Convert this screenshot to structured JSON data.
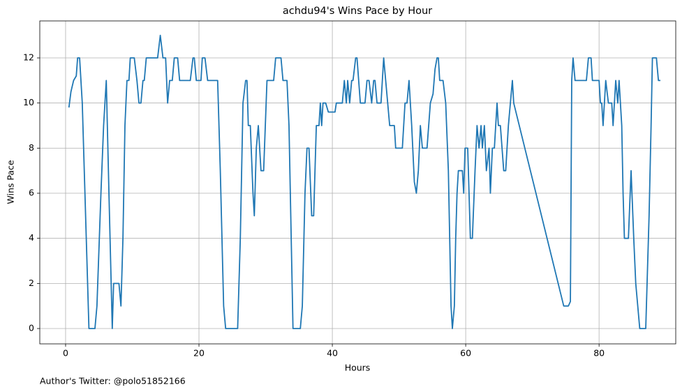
{
  "chart_data": {
    "type": "line",
    "title": "achdu94's Wins Pace by Hour",
    "x_label": "Hours",
    "y_label": "Wins Pace",
    "annotation": "Author's Twitter: @polo51852166",
    "xlim": [
      -3.87,
      91.5
    ],
    "ylim": [
      -0.68,
      13.64
    ],
    "xticks": [
      0,
      20,
      40,
      60,
      80
    ],
    "yticks": [
      0,
      2,
      4,
      6,
      8,
      10,
      12
    ],
    "grid": true,
    "series": [
      {
        "name": "Wins Pace",
        "color": "#1f77b4",
        "x": [
          0.5,
          0.8,
          1.2,
          1.6,
          1.8,
          2.1,
          2.5,
          3.1,
          3.5,
          4.4,
          4.7,
          5.3,
          5.7,
          6.1,
          6.5,
          7.0,
          7.2,
          8.0,
          8.3,
          8.6,
          8.9,
          9.2,
          9.5,
          9.7,
          10.3,
          10.7,
          11.0,
          11.3,
          11.6,
          11.8,
          12.1,
          13.8,
          14.2,
          14.6,
          15.0,
          15.3,
          15.6,
          16.0,
          16.3,
          16.8,
          17.1,
          18.7,
          19.1,
          19.3,
          19.6,
          20.3,
          20.5,
          20.9,
          21.3,
          22.8,
          23.2,
          23.7,
          24.0,
          25.8,
          26.2,
          26.6,
          27.0,
          27.2,
          27.4,
          27.7,
          28.1,
          28.3,
          28.6,
          28.9,
          29.3,
          29.7,
          30.2,
          31.2,
          31.5,
          32.3,
          32.6,
          33.2,
          33.5,
          34.1,
          35.2,
          35.5,
          35.9,
          36.2,
          36.5,
          36.9,
          37.2,
          37.6,
          38.0,
          38.2,
          38.4,
          38.6,
          39.0,
          39.4,
          40.4,
          40.6,
          41.5,
          41.8,
          42.1,
          42.3,
          42.6,
          42.9,
          43.1,
          43.5,
          43.7,
          44.2,
          44.9,
          45.2,
          45.5,
          45.9,
          46.2,
          46.4,
          46.7,
          47.3,
          47.7,
          48.3,
          48.6,
          49.3,
          49.5,
          50.5,
          50.9,
          51.2,
          51.5,
          51.9,
          52.3,
          52.6,
          52.9,
          53.2,
          53.5,
          54.2,
          54.7,
          55.1,
          55.4,
          55.7,
          55.9,
          56.1,
          56.6,
          57.0,
          57.4,
          57.8,
          58.0,
          58.3,
          58.5,
          58.7,
          58.9,
          59.5,
          59.7,
          59.9,
          60.3,
          60.5,
          60.7,
          61.0,
          61.4,
          61.7,
          62.0,
          62.3,
          62.5,
          62.8,
          63.1,
          63.5,
          63.7,
          64.0,
          64.3,
          64.7,
          64.9,
          65.2,
          65.7,
          66.0,
          66.4,
          67.0,
          67.2,
          74.7,
          75.4,
          75.7,
          75.9,
          76.1,
          76.4,
          78.1,
          78.4,
          78.8,
          79.0,
          80.0,
          80.2,
          80.4,
          80.6,
          81.0,
          81.4,
          81.9,
          82.1,
          82.5,
          82.8,
          83.0,
          83.4,
          83.6,
          83.8,
          84.4,
          84.8,
          85.2,
          85.5,
          86.1,
          87.0,
          87.5,
          87.8,
          88.0,
          88.6,
          88.9,
          89.2
        ],
        "values": [
          9.8,
          10.5,
          11,
          11.2,
          12,
          12,
          10,
          4,
          0,
          0,
          1,
          6,
          9,
          11,
          6,
          0,
          2,
          2,
          1,
          4,
          9,
          11,
          11,
          12,
          12,
          11,
          10,
          10,
          11,
          11,
          12,
          12,
          13,
          12,
          12,
          10,
          11,
          11,
          12,
          12,
          11,
          11,
          12,
          12,
          11,
          11,
          12,
          12,
          11,
          11,
          7,
          1,
          0,
          0,
          4,
          10,
          11,
          11,
          9,
          9,
          6,
          5,
          8,
          9,
          7,
          7,
          11,
          11,
          12,
          12,
          11,
          11,
          9,
          0,
          0,
          1,
          6,
          8,
          8,
          5,
          5,
          9,
          9,
          10,
          9,
          10,
          10,
          9.6,
          9.6,
          10,
          10,
          11,
          10,
          11,
          10,
          11,
          11,
          12,
          12,
          10,
          10,
          11,
          11,
          10,
          11,
          11,
          10,
          10,
          12,
          10,
          9,
          9,
          8,
          8,
          10,
          10,
          11,
          9,
          6.5,
          6,
          7,
          9,
          8,
          8,
          10,
          10.4,
          11.5,
          12,
          12,
          11,
          11,
          10,
          7,
          1,
          0,
          1,
          4,
          6,
          7,
          7,
          6,
          8,
          8,
          6,
          4,
          4,
          7,
          9,
          8,
          9,
          8,
          9,
          7,
          8,
          6,
          8,
          8,
          10,
          9,
          9,
          7,
          7,
          9,
          11,
          10,
          1,
          1,
          1.2,
          11,
          12,
          11,
          11,
          12,
          12,
          11,
          11,
          10,
          10,
          9,
          11,
          10,
          10,
          9,
          11,
          10,
          11,
          9,
          6,
          4,
          4,
          7,
          4,
          2,
          0,
          0,
          5,
          9,
          12,
          12,
          11,
          11
        ]
      }
    ]
  }
}
